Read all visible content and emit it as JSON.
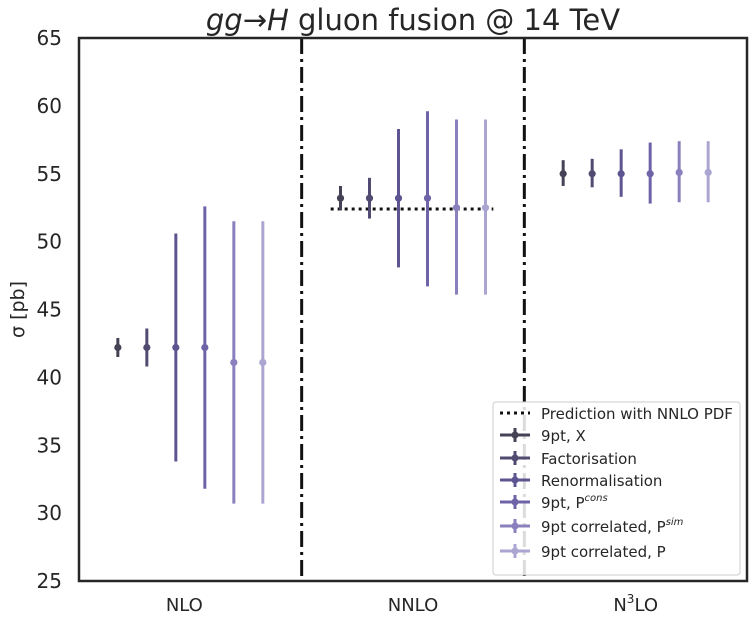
{
  "chart_data": {
    "type": "errorbar",
    "title": "gg→H gluon fusion @ 14 TeV",
    "title_parts": {
      "math": "gg→H",
      "rest": " gluon fusion @ 14 TeV"
    },
    "ylabel": "σ [pb]",
    "ylim": [
      25,
      65
    ],
    "yticks": [
      25,
      30,
      35,
      40,
      45,
      50,
      55,
      60,
      65
    ],
    "grid": false,
    "legend_position": "lower-right",
    "categories": [
      {
        "base": "NLO",
        "sup": ""
      },
      {
        "base": "NNLO",
        "sup": ""
      },
      {
        "base": "N",
        "sup": "3",
        "tail": "LO"
      }
    ],
    "reference_line": {
      "name": "Prediction with NNLO PDF",
      "category": "NNLO",
      "value": 52.4,
      "color": "#111111"
    },
    "series": [
      {
        "name": "9pt, X",
        "sup": "",
        "color": "#454255",
        "points": [
          {
            "category": "NLO",
            "value": 42.2,
            "low": 41.5,
            "high": 42.9
          },
          {
            "category": "NNLO",
            "value": 53.2,
            "low": 52.3,
            "high": 54.1
          },
          {
            "category": "N3LO",
            "value": 55.0,
            "low": 54.1,
            "high": 56.0
          }
        ]
      },
      {
        "name": "Factorisation",
        "sup": "",
        "color": "#514b72",
        "points": [
          {
            "category": "NLO",
            "value": 42.2,
            "low": 40.8,
            "high": 43.6
          },
          {
            "category": "NNLO",
            "value": 53.2,
            "low": 51.7,
            "high": 54.7
          },
          {
            "category": "N3LO",
            "value": 55.0,
            "low": 54.0,
            "high": 56.1
          }
        ]
      },
      {
        "name": "Renormalisation",
        "sup": "",
        "color": "#5d5592",
        "points": [
          {
            "category": "NLO",
            "value": 42.2,
            "low": 33.8,
            "high": 50.6
          },
          {
            "category": "NNLO",
            "value": 53.2,
            "low": 48.1,
            "high": 58.3
          },
          {
            "category": "N3LO",
            "value": 55.0,
            "low": 53.3,
            "high": 56.8
          }
        ]
      },
      {
        "name": "9pt, P",
        "sup": "cons",
        "color": "#6f63a8",
        "points": [
          {
            "category": "NLO",
            "value": 42.2,
            "low": 31.8,
            "high": 52.6
          },
          {
            "category": "NNLO",
            "value": 53.2,
            "low": 46.7,
            "high": 59.6
          },
          {
            "category": "N3LO",
            "value": 55.0,
            "low": 52.8,
            "high": 57.3
          }
        ]
      },
      {
        "name": "9pt correlated, P",
        "sup": "sim",
        "color": "#8b80bd",
        "points": [
          {
            "category": "NLO",
            "value": 41.1,
            "low": 30.7,
            "high": 51.5
          },
          {
            "category": "NNLO",
            "value": 52.5,
            "low": 46.1,
            "high": 59.0
          },
          {
            "category": "N3LO",
            "value": 55.1,
            "low": 52.9,
            "high": 57.4
          }
        ]
      },
      {
        "name": "9pt correlated, P",
        "sup": "",
        "color": "#aba5d2",
        "points": [
          {
            "category": "NLO",
            "value": 41.1,
            "low": 30.7,
            "high": 51.5
          },
          {
            "category": "NNLO",
            "value": 52.5,
            "low": 46.1,
            "high": 59.0
          },
          {
            "category": "N3LO",
            "value": 55.1,
            "low": 52.9,
            "high": 57.4
          }
        ]
      }
    ]
  }
}
